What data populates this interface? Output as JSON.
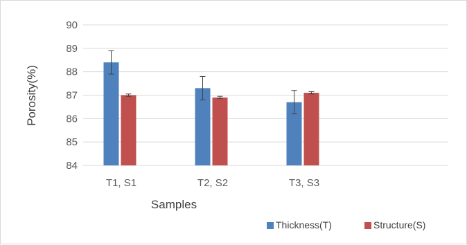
{
  "chart_data": {
    "type": "bar",
    "title": "",
    "xlabel": "Samples",
    "ylabel": "Porosity(%)",
    "ylim": [
      84,
      90
    ],
    "yticks": [
      84,
      85,
      86,
      87,
      88,
      89,
      90
    ],
    "categories": [
      "T1, S1",
      "T2, S2",
      "T3, S3"
    ],
    "grid": true,
    "legend": "bottom-right",
    "series": [
      {
        "name": "Thickness(T)",
        "color": "#4f81bd",
        "values": [
          88.4,
          87.3,
          86.7
        ],
        "errors": [
          0.5,
          0.5,
          0.5
        ]
      },
      {
        "name": "Structure(S)",
        "color": "#c0504d",
        "values": [
          87.0,
          86.9,
          87.1
        ],
        "errors": [
          0.05,
          0.05,
          0.05
        ]
      }
    ]
  }
}
